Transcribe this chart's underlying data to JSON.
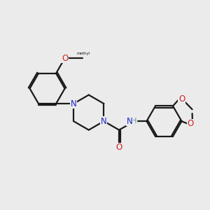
{
  "background_color": "#ebebeb",
  "bond_color": "#1a1a1a",
  "nitrogen_color": "#2222cc",
  "oxygen_color": "#cc2222",
  "nh_color": "#4a9a9a",
  "figsize": [
    3.0,
    3.0
  ],
  "dpi": 100,
  "xlim": [
    0,
    10
  ],
  "ylim": [
    0,
    10
  ]
}
